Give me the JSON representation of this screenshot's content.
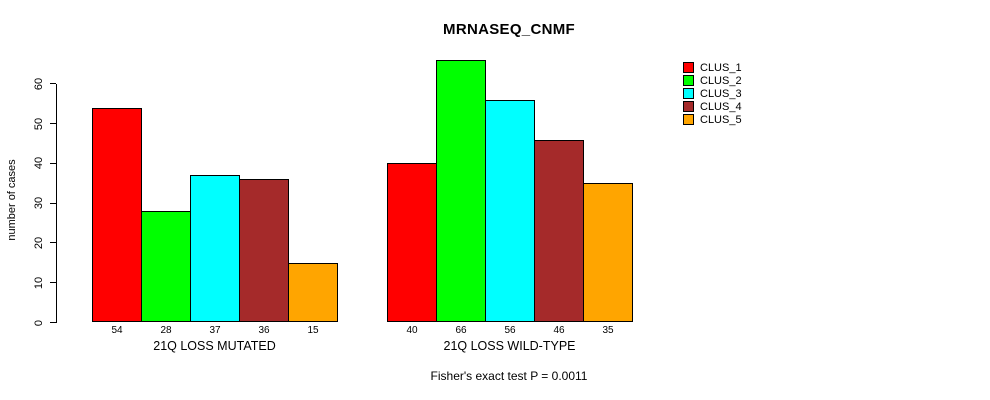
{
  "chart_data": {
    "type": "bar",
    "title": "MRNASEQ_CNMF",
    "ylabel": "number of cases",
    "xlabel": "",
    "categories": [
      "21Q LOSS MUTATED",
      "21Q LOSS WILD-TYPE"
    ],
    "series": [
      {
        "name": "CLUS_1",
        "color": "#ff0000",
        "values": [
          54,
          40
        ]
      },
      {
        "name": "CLUS_2",
        "color": "#00ff00",
        "values": [
          28,
          66
        ]
      },
      {
        "name": "CLUS_3",
        "color": "#00ffff",
        "values": [
          37,
          56
        ]
      },
      {
        "name": "CLUS_4",
        "color": "#a52a2a",
        "values": [
          36,
          46
        ]
      },
      {
        "name": "CLUS_5",
        "color": "#ffa500",
        "values": [
          15,
          35
        ]
      }
    ],
    "bar_value_labels": true,
    "yticks": [
      0,
      10,
      20,
      30,
      40,
      50,
      60
    ],
    "ylim": [
      0,
      66
    ],
    "grid": false,
    "legend_position": "right",
    "annotation": "Fisher's exact test P = 0.0011",
    "axis_color": "#000000",
    "bar_border_color": "#000000"
  }
}
